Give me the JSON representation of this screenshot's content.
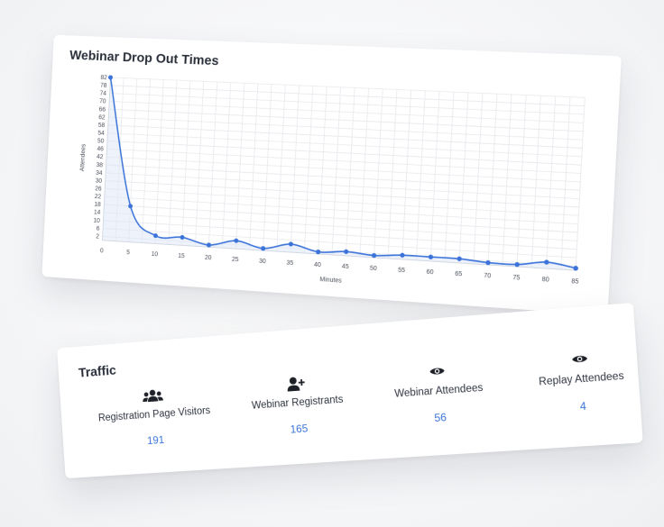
{
  "chart_card": {
    "title": "Webinar Drop Out Times"
  },
  "chart_data": {
    "type": "area",
    "title": "Webinar Drop Out Times",
    "xlabel": "Minutes",
    "ylabel": "Attendees",
    "x": [
      0,
      5,
      10,
      15,
      20,
      25,
      30,
      35,
      40,
      45,
      50,
      55,
      60,
      65,
      70,
      75,
      80,
      85
    ],
    "y": [
      82,
      18,
      4,
      4,
      1,
      4,
      1,
      4,
      1,
      2,
      1,
      2,
      2,
      2,
      1,
      1,
      3,
      1
    ],
    "xlim": [
      0,
      85
    ],
    "ylim": [
      0,
      82
    ],
    "y_ticks": [
      2,
      6,
      10,
      14,
      18,
      22,
      26,
      30,
      34,
      38,
      42,
      46,
      50,
      54,
      58,
      62,
      66,
      70,
      74,
      78,
      82
    ],
    "grid": true,
    "line_color": "#3b73d9",
    "fill_color": "#dfe7f7"
  },
  "traffic": {
    "title": "Traffic",
    "stats": [
      {
        "label": "Registration Page Visitors",
        "value": "191",
        "icon": "users-icon"
      },
      {
        "label": "Webinar Registrants",
        "value": "165",
        "icon": "user-plus-icon"
      },
      {
        "label": "Webinar Attendees",
        "value": "56",
        "icon": "eye-icon"
      },
      {
        "label": "Replay Attendees",
        "value": "4",
        "icon": "eye-icon"
      }
    ],
    "value_color": "#3b73d9"
  }
}
